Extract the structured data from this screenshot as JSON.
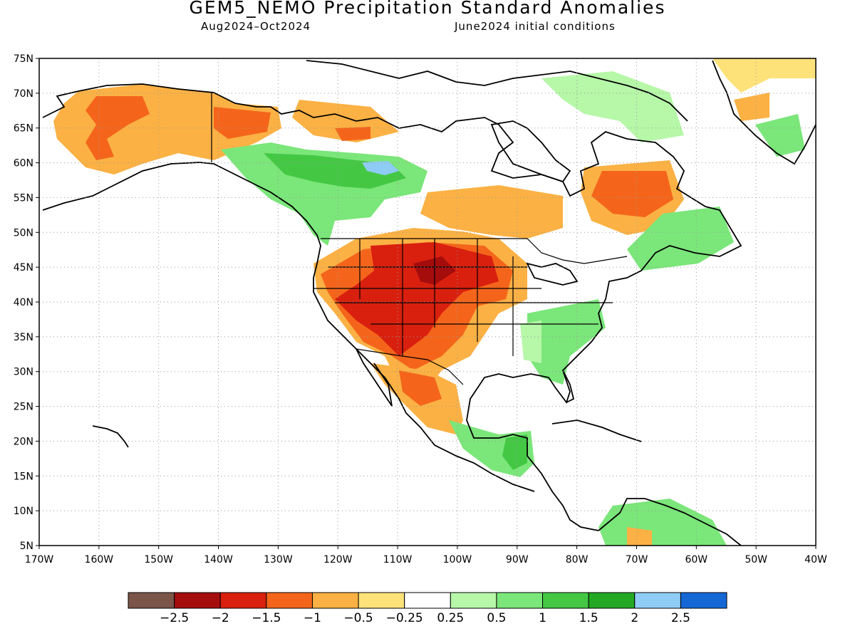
{
  "title": "GEM5_NEMO Precipitation Standard Anomalies",
  "subtitle_left": "Aug2024–Oct2024",
  "subtitle_right": "June2024 initial conditions",
  "map": {
    "lat_range": [
      5,
      75
    ],
    "lon_range": [
      -170,
      -40
    ],
    "lat_ticks": [
      "5N",
      "10N",
      "15N",
      "20N",
      "25N",
      "30N",
      "35N",
      "40N",
      "45N",
      "50N",
      "55N",
      "60N",
      "65N",
      "70N",
      "75N"
    ],
    "lon_ticks": [
      "170W",
      "160W",
      "150W",
      "140W",
      "130W",
      "120W",
      "110W",
      "100W",
      "90W",
      "80W",
      "70W",
      "60W",
      "50W",
      "40W"
    ],
    "grid": "dotted"
  },
  "colorbar": {
    "colors": [
      "#7b5548",
      "#a50c0c",
      "#d9200f",
      "#f4651b",
      "#fbb144",
      "#fde27a",
      "#ffffff",
      "#b6f7a8",
      "#7be67a",
      "#44c844",
      "#23a823",
      "#8fccf5",
      "#1667d6"
    ],
    "labels": [
      "−2.5",
      "−2",
      "−1.5",
      "−1",
      "−0.5",
      "−0.25",
      "0.25",
      "0.5",
      "1",
      "1.5",
      "2",
      "2.5"
    ]
  }
}
